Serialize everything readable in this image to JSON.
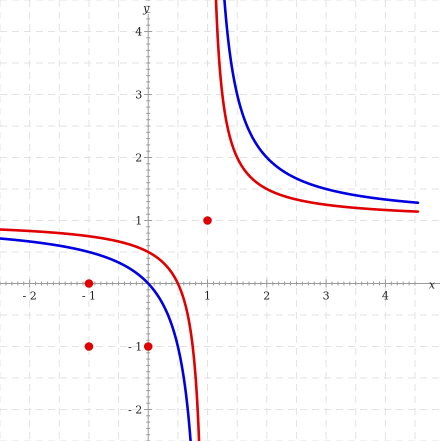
{
  "chart_data": {
    "type": "line",
    "xlabel": "x",
    "ylabel": "y",
    "xlim": [
      -2.5,
      4.55
    ],
    "ylim": [
      -2.5,
      4.5
    ],
    "grid": true,
    "x_ticks": [
      -2,
      -1,
      1,
      2,
      3,
      4
    ],
    "y_ticks": [
      -2,
      -1,
      1,
      2,
      3,
      4
    ],
    "x_tick_labels": [
      "- 2",
      "- 1",
      "1",
      "2",
      "3",
      "4"
    ],
    "y_tick_labels": [
      "- 2",
      "- 1",
      "1",
      "2",
      "3",
      "4"
    ],
    "series": [
      {
        "type": "curve",
        "expression": "y = 1 + 1/(x - 1)",
        "asymptotes": {
          "x": 1,
          "y": 1
        },
        "color": "#0000e0"
      },
      {
        "type": "curve",
        "expression": "y = 1 + 1/(2x - 2)",
        "asymptotes": {
          "x": 1,
          "y": 1
        },
        "color": "#e00000"
      },
      {
        "type": "scatter",
        "color": "#e00000",
        "points": [
          [
            -1,
            0
          ],
          [
            0,
            -1
          ],
          [
            -1,
            -1
          ],
          [
            1,
            1
          ]
        ]
      }
    ]
  }
}
